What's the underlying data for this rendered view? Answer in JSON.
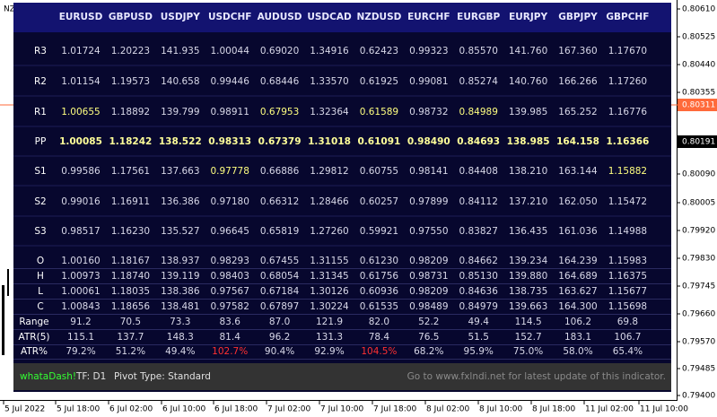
{
  "corner_label": "NZ",
  "table": {
    "headers": [
      "EURUSD",
      "GBPUSD",
      "USDJPY",
      "USDCHF",
      "AUDUSD",
      "USDCAD",
      "NZDUSD",
      "EURCHF",
      "EURGBP",
      "EURJPY",
      "GBPJPY",
      "GBPCHF"
    ],
    "rows": [
      {
        "label": "R3",
        "cells": [
          "1.01724",
          "1.20223",
          "141.935",
          "1.00044",
          "0.69020",
          "1.34916",
          "0.62423",
          "0.99323",
          "0.85570",
          "141.760",
          "167.360",
          "1.17670"
        ]
      },
      {
        "label": "R2",
        "cells": [
          "1.01154",
          "1.19573",
          "140.658",
          "0.99446",
          "0.68446",
          "1.33570",
          "0.61925",
          "0.99081",
          "0.85274",
          "140.760",
          "166.266",
          "1.17260"
        ]
      },
      {
        "label": "R1",
        "cells": [
          "1.00655",
          "1.18892",
          "139.799",
          "0.98911",
          "0.67953",
          "1.32364",
          "0.61589",
          "0.98732",
          "0.84989",
          "139.985",
          "165.252",
          "1.16776"
        ],
        "cell_colors": [
          "#ffff80",
          "#d8d8e8",
          "#d8d8e8",
          "#d8d8e8",
          "#ffff80",
          "#d8d8e8",
          "#ffff80",
          "#d8d8e8",
          "#ffff80",
          "#d8d8e8",
          "#d8d8e8",
          "#d8d8e8"
        ]
      },
      {
        "label": "PP",
        "cells": [
          "1.00085",
          "1.18242",
          "138.522",
          "0.98313",
          "0.67379",
          "1.31018",
          "0.61091",
          "0.98490",
          "0.84693",
          "138.985",
          "164.158",
          "1.16366"
        ],
        "color": "#ffff99",
        "bold": true
      },
      {
        "label": "S1",
        "cells": [
          "0.99586",
          "1.17561",
          "137.663",
          "0.97778",
          "0.66886",
          "1.29812",
          "0.60755",
          "0.98141",
          "0.84408",
          "138.210",
          "163.144",
          "1.15882"
        ],
        "cell_colors": [
          "#d8d8e8",
          "#d8d8e8",
          "#d8d8e8",
          "#ffff80",
          "#d8d8e8",
          "#d8d8e8",
          "#d8d8e8",
          "#d8d8e8",
          "#d8d8e8",
          "#d8d8e8",
          "#d8d8e8",
          "#ffff80"
        ]
      },
      {
        "label": "S2",
        "cells": [
          "0.99016",
          "1.16911",
          "136.386",
          "0.97180",
          "0.66312",
          "1.28466",
          "0.60257",
          "0.97899",
          "0.84112",
          "137.210",
          "162.050",
          "1.15472"
        ]
      },
      {
        "label": "S3",
        "cells": [
          "0.98517",
          "1.16230",
          "135.527",
          "0.96645",
          "0.65819",
          "1.27260",
          "0.59921",
          "0.97550",
          "0.83827",
          "136.435",
          "161.036",
          "1.14988"
        ]
      },
      {
        "label": "O",
        "cells": [
          "1.00160",
          "1.18167",
          "138.937",
          "0.98293",
          "0.67455",
          "1.31155",
          "0.61230",
          "0.98209",
          "0.84662",
          "139.234",
          "164.239",
          "1.15983"
        ]
      },
      {
        "label": "H",
        "cells": [
          "1.00973",
          "1.18740",
          "139.119",
          "0.98403",
          "0.68054",
          "1.31345",
          "0.61756",
          "0.98731",
          "0.85130",
          "139.880",
          "164.689",
          "1.16375"
        ]
      },
      {
        "label": "L",
        "cells": [
          "1.00061",
          "1.18035",
          "138.386",
          "0.97567",
          "0.67184",
          "1.30126",
          "0.60936",
          "0.98209",
          "0.84636",
          "138.735",
          "163.627",
          "1.15677"
        ]
      },
      {
        "label": "C",
        "cells": [
          "1.00843",
          "1.18656",
          "138.481",
          "0.97582",
          "0.67897",
          "1.30224",
          "0.61535",
          "0.98489",
          "0.84979",
          "139.663",
          "164.300",
          "1.15698"
        ]
      },
      {
        "label": "Range",
        "cells": [
          "91.2",
          "70.5",
          "73.3",
          "83.6",
          "87.0",
          "121.9",
          "82.0",
          "52.2",
          "49.4",
          "114.5",
          "106.2",
          "69.8"
        ]
      },
      {
        "label": "ATR(5)",
        "cells": [
          "115.1",
          "137.7",
          "148.3",
          "81.4",
          "96.2",
          "131.3",
          "78.4",
          "76.5",
          "51.5",
          "152.7",
          "183.1",
          "106.7"
        ]
      },
      {
        "label": "ATR%",
        "cells": [
          "79.2%",
          "51.2%",
          "49.4%",
          "102.7%",
          "90.4%",
          "92.9%",
          "104.5%",
          "68.2%",
          "95.9%",
          "75.0%",
          "58.0%",
          "65.4%"
        ],
        "cell_colors": [
          "#d8d8e8",
          "#d8d8e8",
          "#d8d8e8",
          "#ff3030",
          "#d8d8e8",
          "#d8d8e8",
          "#ff3030",
          "#d8d8e8",
          "#d8d8e8",
          "#d8d8e8",
          "#d8d8e8",
          "#d8d8e8"
        ]
      }
    ]
  },
  "footer": {
    "brand": "whataDash!",
    "timeframe": "TF: D1",
    "pivot_type": "Pivot Type: Standard",
    "notice": "Go to www.fxlndi.net for latest update of this indicator."
  },
  "price_axis": {
    "labels": [
      "0.80610",
      "0.80525",
      "0.80440",
      "0.80355",
      "0.80090",
      "0.80005",
      "0.79920",
      "0.79830",
      "0.79745",
      "0.79660",
      "0.79570",
      "0.79485",
      "0.79400"
    ],
    "ask_label": "0.80311",
    "bid_label": "0.80191"
  },
  "time_axis": {
    "labels": [
      "5 Jul 2022",
      "5 Jul 18:00",
      "6 Jul 02:00",
      "6 Jul 10:00",
      "6 Jul 18:00",
      "7 Jul 02:00",
      "7 Jul 10:00",
      "7 Jul 18:00",
      "8 Jul 02:00",
      "8 Jul 10:00",
      "8 Jul 18:00",
      "11 Jul 02:00",
      "11 Jul 10:00"
    ]
  }
}
